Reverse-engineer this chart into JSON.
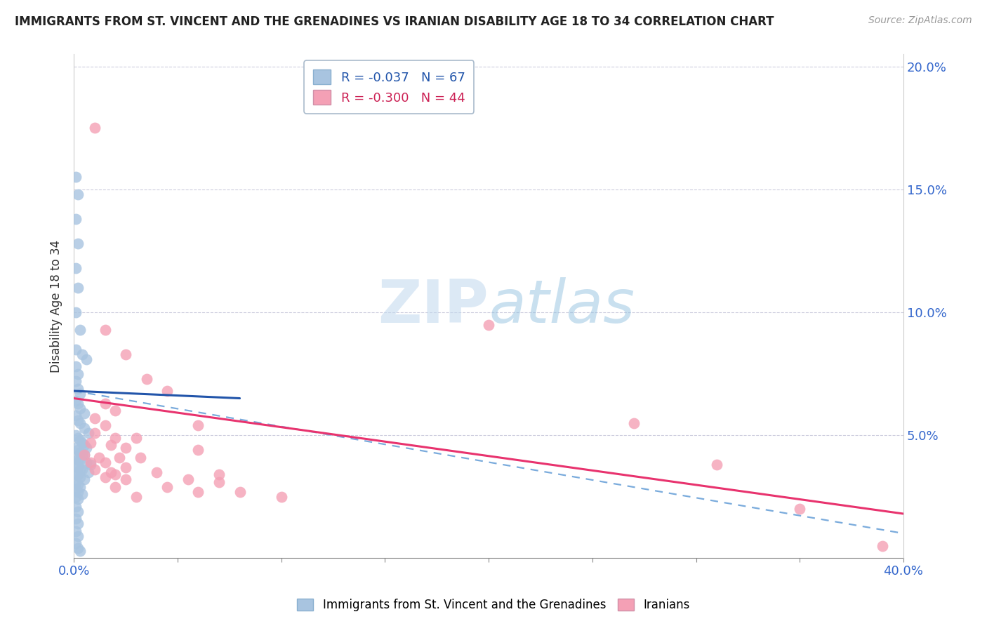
{
  "title": "IMMIGRANTS FROM ST. VINCENT AND THE GRENADINES VS IRANIAN DISABILITY AGE 18 TO 34 CORRELATION CHART",
  "source": "Source: ZipAtlas.com",
  "ylabel": "Disability Age 18 to 34",
  "xlim": [
    0.0,
    0.4
  ],
  "ylim": [
    0.0,
    0.205
  ],
  "xticks": [
    0.0,
    0.05,
    0.1,
    0.15,
    0.2,
    0.25,
    0.3,
    0.35,
    0.4
  ],
  "yticks": [
    0.0,
    0.05,
    0.1,
    0.15,
    0.2
  ],
  "blue_R": -0.037,
  "blue_N": 67,
  "pink_R": -0.3,
  "pink_N": 44,
  "blue_color": "#a8c4e0",
  "pink_color": "#f4a0b5",
  "blue_line_color": "#2255aa",
  "pink_line_color": "#e8336e",
  "blue_dash_color": "#7aabdc",
  "watermark_text": "ZIPatlas",
  "blue_line": [
    0.0,
    0.068,
    0.08,
    0.065
  ],
  "blue_dash_line": [
    0.0,
    0.068,
    0.4,
    0.01
  ],
  "pink_line": [
    0.0,
    0.065,
    0.4,
    0.018
  ],
  "blue_points": [
    [
      0.001,
      0.155
    ],
    [
      0.002,
      0.148
    ],
    [
      0.001,
      0.138
    ],
    [
      0.002,
      0.128
    ],
    [
      0.001,
      0.118
    ],
    [
      0.002,
      0.11
    ],
    [
      0.001,
      0.1
    ],
    [
      0.003,
      0.093
    ],
    [
      0.001,
      0.085
    ],
    [
      0.004,
      0.083
    ],
    [
      0.006,
      0.081
    ],
    [
      0.001,
      0.078
    ],
    [
      0.002,
      0.075
    ],
    [
      0.001,
      0.072
    ],
    [
      0.002,
      0.069
    ],
    [
      0.003,
      0.067
    ],
    [
      0.001,
      0.064
    ],
    [
      0.002,
      0.063
    ],
    [
      0.003,
      0.061
    ],
    [
      0.005,
      0.059
    ],
    [
      0.001,
      0.058
    ],
    [
      0.002,
      0.056
    ],
    [
      0.003,
      0.055
    ],
    [
      0.005,
      0.053
    ],
    [
      0.007,
      0.051
    ],
    [
      0.001,
      0.05
    ],
    [
      0.002,
      0.049
    ],
    [
      0.003,
      0.048
    ],
    [
      0.004,
      0.047
    ],
    [
      0.005,
      0.046
    ],
    [
      0.006,
      0.045
    ],
    [
      0.001,
      0.045
    ],
    [
      0.002,
      0.044
    ],
    [
      0.003,
      0.043
    ],
    [
      0.004,
      0.042
    ],
    [
      0.005,
      0.042
    ],
    [
      0.001,
      0.041
    ],
    [
      0.002,
      0.04
    ],
    [
      0.003,
      0.04
    ],
    [
      0.006,
      0.039
    ],
    [
      0.008,
      0.038
    ],
    [
      0.001,
      0.038
    ],
    [
      0.002,
      0.037
    ],
    [
      0.003,
      0.036
    ],
    [
      0.004,
      0.036
    ],
    [
      0.007,
      0.035
    ],
    [
      0.001,
      0.034
    ],
    [
      0.002,
      0.034
    ],
    [
      0.003,
      0.033
    ],
    [
      0.005,
      0.032
    ],
    [
      0.001,
      0.031
    ],
    [
      0.002,
      0.03
    ],
    [
      0.003,
      0.029
    ],
    [
      0.001,
      0.028
    ],
    [
      0.002,
      0.027
    ],
    [
      0.004,
      0.026
    ],
    [
      0.001,
      0.025
    ],
    [
      0.002,
      0.024
    ],
    [
      0.001,
      0.021
    ],
    [
      0.002,
      0.019
    ],
    [
      0.001,
      0.016
    ],
    [
      0.002,
      0.014
    ],
    [
      0.001,
      0.011
    ],
    [
      0.002,
      0.009
    ],
    [
      0.001,
      0.006
    ],
    [
      0.002,
      0.004
    ],
    [
      0.003,
      0.003
    ]
  ],
  "pink_points": [
    [
      0.01,
      0.175
    ],
    [
      0.015,
      0.093
    ],
    [
      0.025,
      0.083
    ],
    [
      0.035,
      0.073
    ],
    [
      0.045,
      0.068
    ],
    [
      0.015,
      0.063
    ],
    [
      0.02,
      0.06
    ],
    [
      0.01,
      0.057
    ],
    [
      0.015,
      0.054
    ],
    [
      0.06,
      0.054
    ],
    [
      0.01,
      0.051
    ],
    [
      0.02,
      0.049
    ],
    [
      0.03,
      0.049
    ],
    [
      0.008,
      0.047
    ],
    [
      0.018,
      0.046
    ],
    [
      0.025,
      0.045
    ],
    [
      0.06,
      0.044
    ],
    [
      0.005,
      0.042
    ],
    [
      0.012,
      0.041
    ],
    [
      0.022,
      0.041
    ],
    [
      0.032,
      0.041
    ],
    [
      0.008,
      0.039
    ],
    [
      0.015,
      0.039
    ],
    [
      0.025,
      0.037
    ],
    [
      0.01,
      0.036
    ],
    [
      0.018,
      0.035
    ],
    [
      0.04,
      0.035
    ],
    [
      0.02,
      0.034
    ],
    [
      0.07,
      0.034
    ],
    [
      0.015,
      0.033
    ],
    [
      0.025,
      0.032
    ],
    [
      0.055,
      0.032
    ],
    [
      0.07,
      0.031
    ],
    [
      0.02,
      0.029
    ],
    [
      0.045,
      0.029
    ],
    [
      0.06,
      0.027
    ],
    [
      0.08,
      0.027
    ],
    [
      0.03,
      0.025
    ],
    [
      0.1,
      0.025
    ],
    [
      0.2,
      0.095
    ],
    [
      0.27,
      0.055
    ],
    [
      0.31,
      0.038
    ],
    [
      0.35,
      0.02
    ],
    [
      0.39,
      0.005
    ]
  ]
}
